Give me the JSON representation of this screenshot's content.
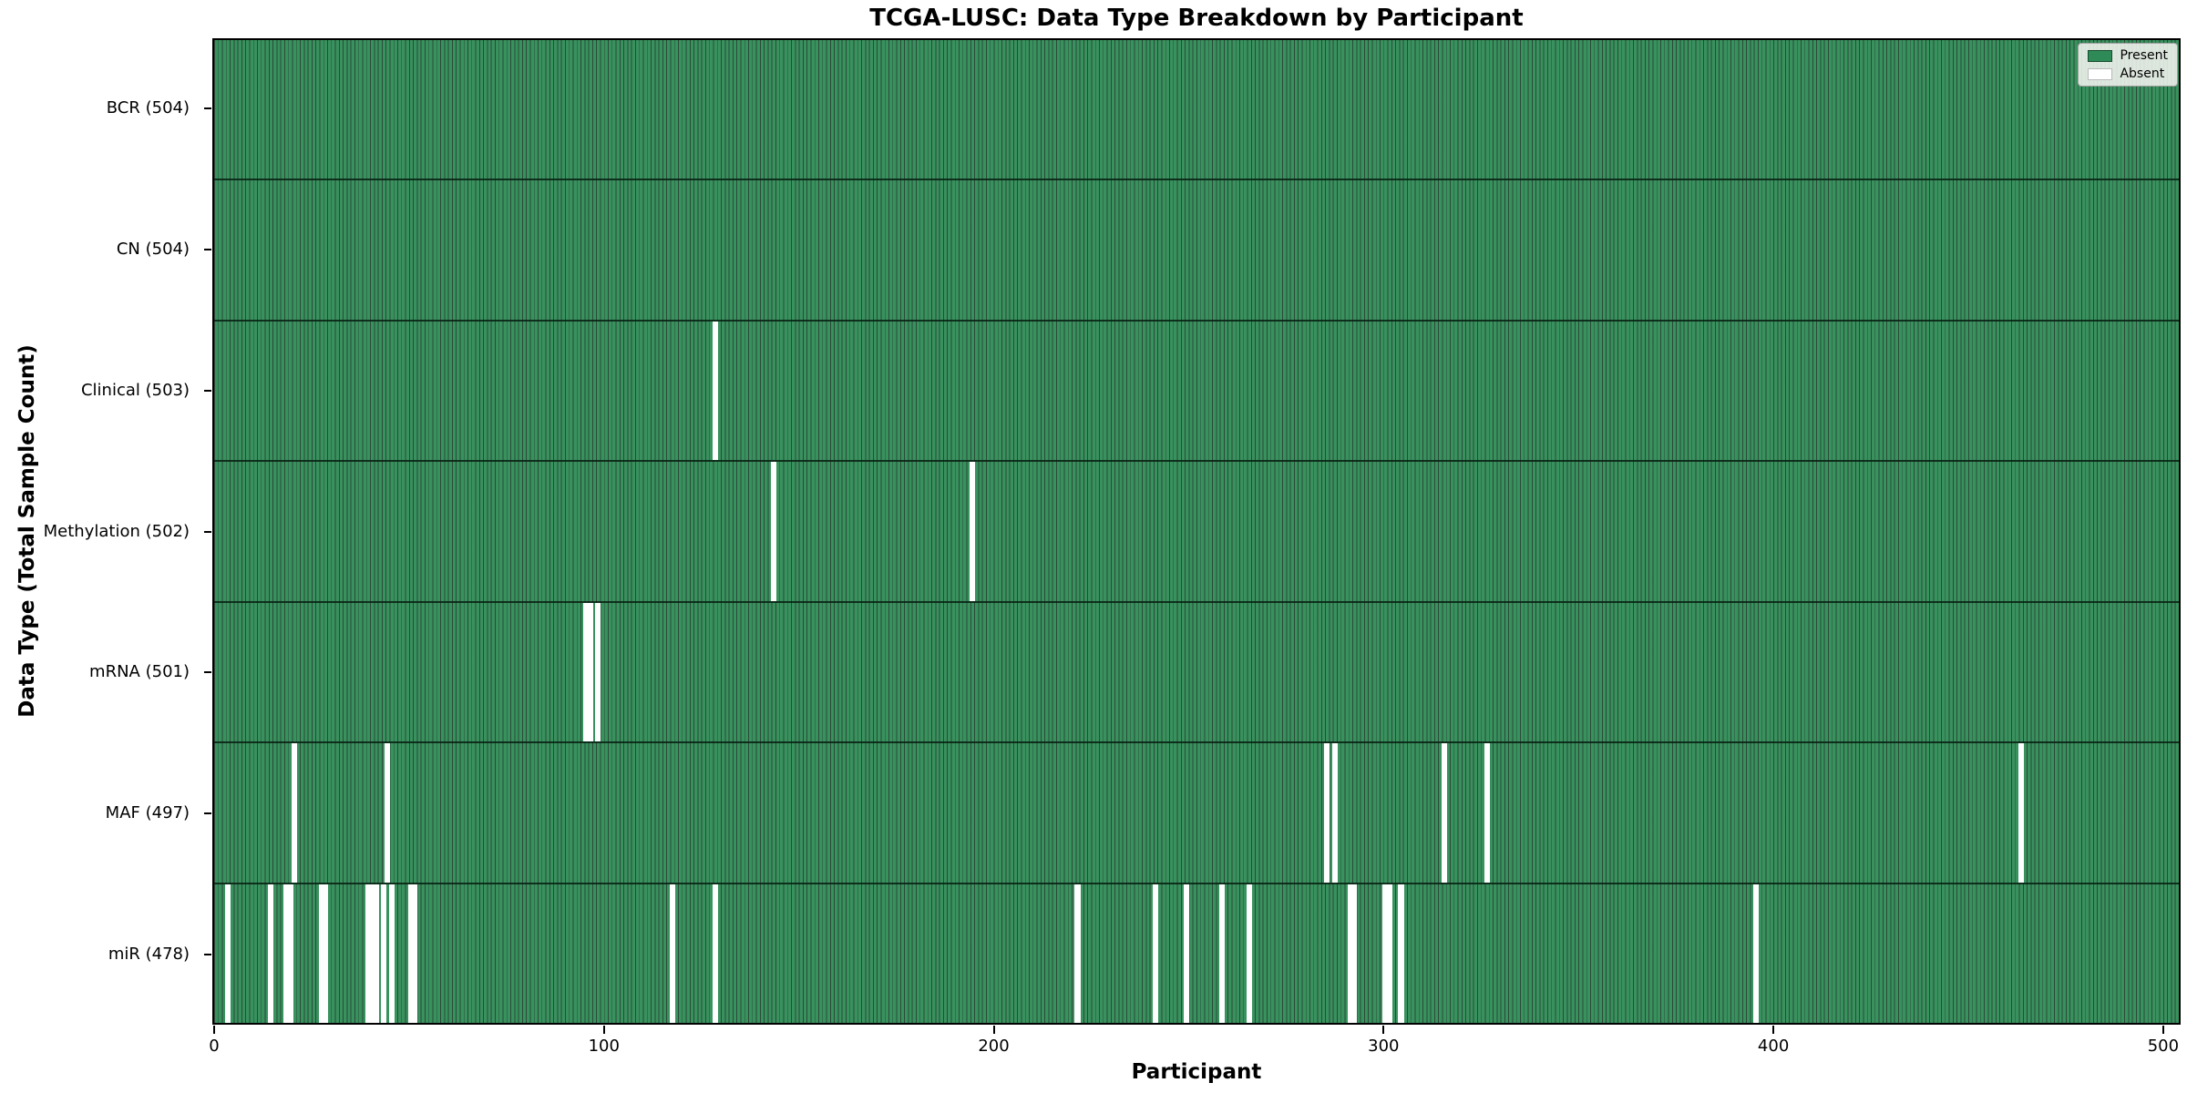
{
  "title": "TCGA-LUSC: Data Type Breakdown by Participant",
  "axes": {
    "x_label": "Participant",
    "y_label": "Data Type (Total Sample Count)"
  },
  "legend": {
    "items": [
      {
        "label": "Present",
        "color": "#2e8b57"
      },
      {
        "label": "Absent",
        "color": "#ffffff"
      }
    ]
  },
  "colors": {
    "present": "#2e8b57",
    "present_fill": "#38925e",
    "bar_edge": "rgba(8,40,22,0.85)",
    "absent": "#ffffff",
    "row_divider": "rgba(5,28,15,0.82)"
  },
  "chart_data": {
    "type": "heatmap",
    "title": "TCGA-LUSC: Data Type Breakdown by Participant",
    "xlabel": "Participant",
    "ylabel": "Data Type (Total Sample Count)",
    "x_range": [
      0,
      504
    ],
    "n_participants": 504,
    "x_ticks": [
      0,
      100,
      200,
      300,
      400,
      500
    ],
    "grid": false,
    "legend_position": "upper right",
    "legend_entries": [
      "Present",
      "Absent"
    ],
    "rows": [
      {
        "label": "BCR (504)",
        "data_type": "BCR",
        "total": 504,
        "absent_participants": []
      },
      {
        "label": "CN (504)",
        "data_type": "CN",
        "total": 504,
        "absent_participants": []
      },
      {
        "label": "Clinical (503)",
        "data_type": "Clinical",
        "total": 503,
        "absent_participants": [
          128
        ]
      },
      {
        "label": "Methylation (502)",
        "data_type": "Methylation",
        "total": 502,
        "absent_participants": [
          143,
          194
        ]
      },
      {
        "label": "mRNA (501)",
        "data_type": "mRNA",
        "total": 501,
        "absent_participants": [
          95,
          96,
          98
        ]
      },
      {
        "label": "MAF (497)",
        "data_type": "MAF",
        "total": 497,
        "absent_participants": [
          20,
          44,
          285,
          287,
          315,
          326,
          463
        ]
      },
      {
        "label": "miR (478)",
        "data_type": "miR",
        "total": 478,
        "absent_participants": [
          3,
          14,
          18,
          19,
          27,
          28,
          39,
          40,
          41,
          43,
          45,
          50,
          51,
          117,
          128,
          221,
          241,
          249,
          258,
          265,
          291,
          292,
          300,
          301,
          304,
          395
        ]
      }
    ]
  }
}
